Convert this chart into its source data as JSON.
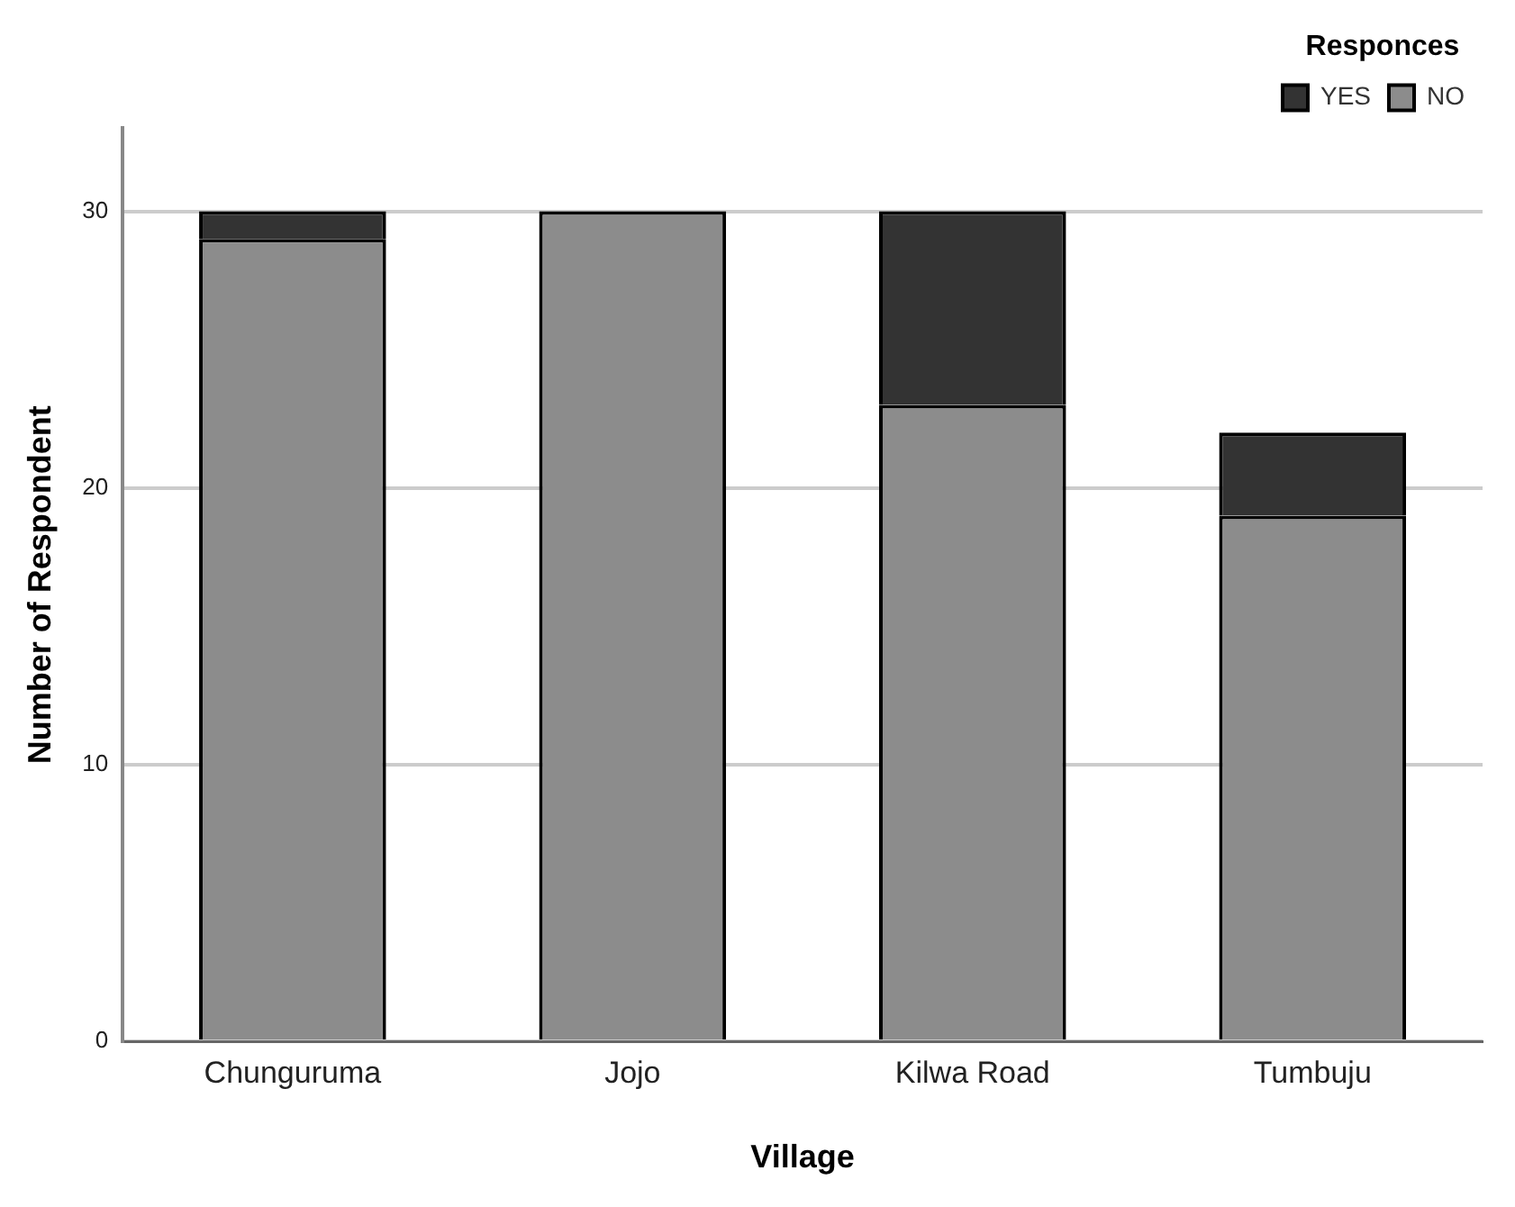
{
  "chart_data": {
    "type": "bar",
    "xlabel": "Village",
    "ylabel": "Number of Respondent",
    "legend_title": "Responces",
    "categories": [
      "Chunguruma",
      "Jojo",
      "Kilwa Road",
      "Tumbuju"
    ],
    "series": [
      {
        "name": "NO",
        "color": "#8c8c8c",
        "values": [
          29,
          30,
          23,
          19
        ]
      },
      {
        "name": "YES",
        "color": "#333333",
        "values": [
          1,
          0,
          7,
          3
        ]
      }
    ],
    "stacked": true,
    "ylim": [
      0,
      33
    ],
    "yticks": [
      0,
      10,
      20,
      30
    ],
    "grid": "y",
    "legend": "top right"
  }
}
